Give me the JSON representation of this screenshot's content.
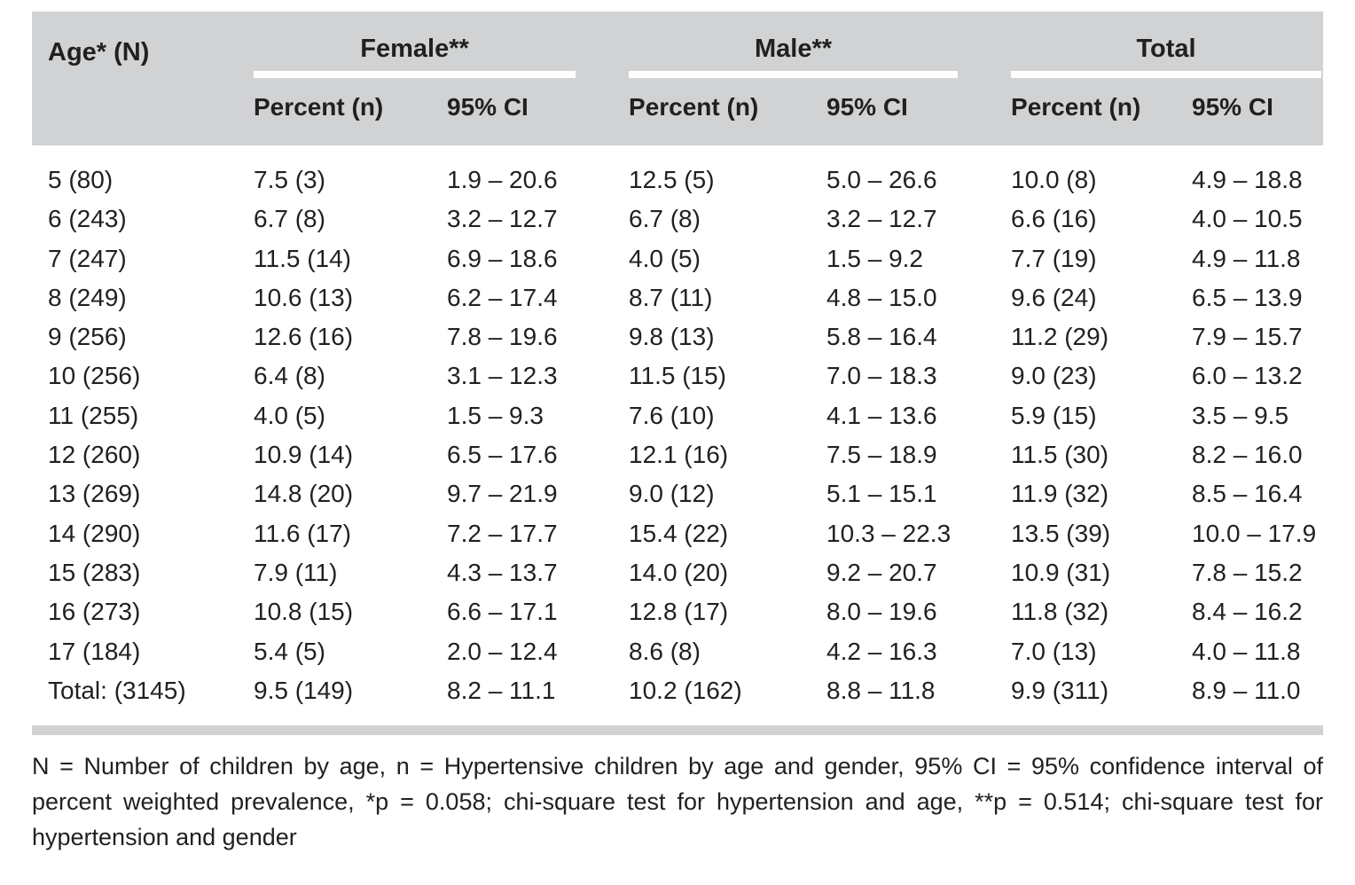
{
  "colors": {
    "header_bg": "#d0d2d3",
    "divider": "#d0d2d3",
    "text": "#231f20",
    "underline": "#ffffff"
  },
  "table": {
    "header": {
      "age_label": "Age* (N)",
      "groups": [
        {
          "label": "Female**"
        },
        {
          "label": "Male**"
        },
        {
          "label": "Total"
        }
      ],
      "percent_label": "Percent (n)",
      "ci_label": "95% CI"
    },
    "rows": [
      [
        "5 (80)",
        "7.5 (3)",
        "1.9 – 20.6",
        "12.5 (5)",
        "5.0 – 26.6",
        "10.0 (8)",
        "4.9 – 18.8"
      ],
      [
        "6 (243)",
        "6.7 (8)",
        "3.2 – 12.7",
        "6.7 (8)",
        "3.2 – 12.7",
        "6.6 (16)",
        "4.0 – 10.5"
      ],
      [
        "7 (247)",
        "11.5 (14)",
        "6.9 – 18.6",
        "4.0 (5)",
        "1.5 – 9.2",
        "7.7 (19)",
        "4.9 – 11.8"
      ],
      [
        "8 (249)",
        "10.6 (13)",
        "6.2 – 17.4",
        "8.7 (11)",
        "4.8 – 15.0",
        "9.6 (24)",
        "6.5 – 13.9"
      ],
      [
        "9 (256)",
        "12.6 (16)",
        "7.8 – 19.6",
        "9.8 (13)",
        "5.8 – 16.4",
        "11.2 (29)",
        "7.9 – 15.7"
      ],
      [
        "10 (256)",
        "6.4 (8)",
        "3.1 – 12.3",
        "11.5 (15)",
        "7.0 – 18.3",
        "9.0 (23)",
        "6.0 – 13.2"
      ],
      [
        "11 (255)",
        "4.0 (5)",
        "1.5 – 9.3",
        "7.6 (10)",
        "4.1 – 13.6",
        "5.9 (15)",
        "3.5 – 9.5"
      ],
      [
        "12 (260)",
        "10.9 (14)",
        "6.5 – 17.6",
        "12.1 (16)",
        "7.5 – 18.9",
        "11.5 (30)",
        "8.2 – 16.0"
      ],
      [
        "13 (269)",
        "14.8 (20)",
        "9.7 – 21.9",
        "9.0 (12)",
        "5.1 – 15.1",
        "11.9 (32)",
        "8.5 – 16.4"
      ],
      [
        "14 (290)",
        "11.6 (17)",
        "7.2 – 17.7",
        "15.4 (22)",
        "10.3 – 22.3",
        "13.5 (39)",
        "10.0 – 17.9"
      ],
      [
        "15 (283)",
        "7.9 (11)",
        "4.3 – 13.7",
        "14.0 (20)",
        "9.2 – 20.7",
        "10.9 (31)",
        "7.8 – 15.2"
      ],
      [
        "16 (273)",
        "10.8 (15)",
        "6.6 – 17.1",
        "12.8 (17)",
        "8.0 – 19.6",
        "11.8 (32)",
        "8.4 – 16.2"
      ],
      [
        "17 (184)",
        "5.4 (5)",
        "2.0 – 12.4",
        "8.6 (8)",
        "4.2 – 16.3",
        "7.0 (13)",
        "4.0 – 11.8"
      ],
      [
        "Total: (3145)",
        "9.5 (149)",
        "8.2 – 11.1",
        "10.2 (162)",
        "8.8 – 11.8",
        "9.9 (311)",
        "8.9 – 11.0"
      ]
    ]
  },
  "footnote": {
    "lines": [
      "N = Number of children by age, n = Hypertensive children by age and gender, 95% CI = 95% confidence interval of",
      "percent weighted prevalence, *p = 0.058; chi-square test for hypertension and age, **p = 0.514; chi-square test for",
      "hypertension and gender"
    ]
  }
}
